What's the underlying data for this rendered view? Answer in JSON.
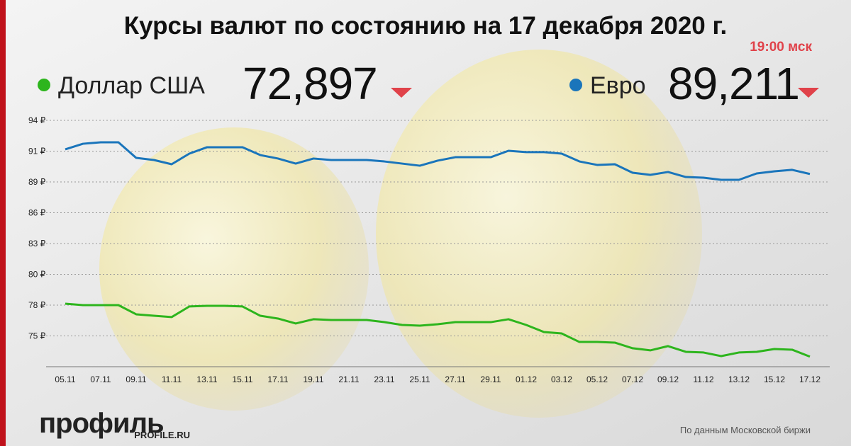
{
  "chart_data": {
    "type": "line",
    "title": "Курсы валют по состоянию на 17 декабря 2020 г.",
    "subtitle": "19:00 мск",
    "categories": [
      "05.11",
      null,
      "07.11",
      null,
      "09.11",
      null,
      "11.11",
      null,
      "13.11",
      null,
      "15.11",
      null,
      "17.11",
      null,
      "19.11",
      null,
      "21.11",
      null,
      "23.11",
      null,
      "25.11",
      null,
      "27.11",
      null,
      "29.11",
      null,
      "01.12",
      null,
      "03.12",
      null,
      "05.12",
      null,
      "07.12",
      null,
      "09.12",
      null,
      "11.12",
      null,
      "13.12",
      null,
      "15.12",
      null,
      "17.12"
    ],
    "series": [
      {
        "name": "Доллар США",
        "latest_label": "72,897",
        "color": "#2db51d",
        "values": [
          77.63,
          77.5,
          77.5,
          77.5,
          76.68,
          76.55,
          76.43,
          77.38,
          77.44,
          77.44,
          77.38,
          76.55,
          76.3,
          75.86,
          76.24,
          76.17,
          76.17,
          76.17,
          75.98,
          75.73,
          75.67,
          75.79,
          75.98,
          75.98,
          75.98,
          76.24,
          75.73,
          75.1,
          74.97,
          74.21,
          74.21,
          74.15,
          73.65,
          73.46,
          73.84,
          73.33,
          73.27,
          72.95,
          73.27,
          73.33,
          73.58,
          73.52,
          72.9
        ]
      },
      {
        "name": "Евро",
        "latest_label": "89,211",
        "color": "#1a75bb",
        "values": [
          91.41,
          91.91,
          92.04,
          92.04,
          90.65,
          90.46,
          90.08,
          91.03,
          91.6,
          91.6,
          91.6,
          90.9,
          90.59,
          90.14,
          90.59,
          90.46,
          90.46,
          90.46,
          90.33,
          90.14,
          89.95,
          90.4,
          90.71,
          90.71,
          90.71,
          91.28,
          91.16,
          91.16,
          91.03,
          90.33,
          90.02,
          90.08,
          89.32,
          89.13,
          89.39,
          88.94,
          88.88,
          88.69,
          88.69,
          89.26,
          89.45,
          89.58,
          89.21
        ]
      }
    ],
    "ylim": [
      72,
      94
    ],
    "yticks": [
      {
        "value": 94,
        "label": "94 ₽"
      },
      {
        "value": 91.25,
        "label": "91 ₽"
      },
      {
        "value": 88.5,
        "label": "89 ₽"
      },
      {
        "value": 85.75,
        "label": "86 ₽"
      },
      {
        "value": 83,
        "label": "83 ₽"
      },
      {
        "value": 80.25,
        "label": "80 ₽"
      },
      {
        "value": 77.5,
        "label": "78 ₽"
      },
      {
        "value": 74.75,
        "label": "75 ₽"
      }
    ],
    "grid": true,
    "trend_color": "#e0424a",
    "logo": "профиль",
    "logo_url": "PROFILE.RU",
    "source": "По данным Московской биржи"
  }
}
